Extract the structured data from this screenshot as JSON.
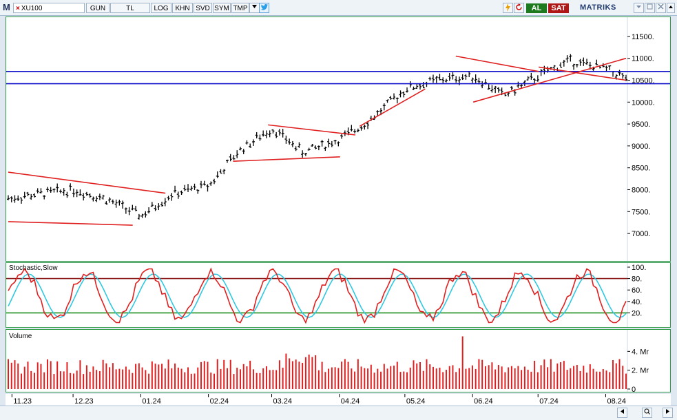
{
  "toolbar": {
    "logo": "M",
    "symbol": "XU100",
    "close_mark": "×",
    "buttons": [
      {
        "name": "gun-button",
        "label": "GUN"
      },
      {
        "name": "currency-button",
        "label": "TL"
      },
      {
        "name": "log-button",
        "label": "LOG"
      },
      {
        "name": "khn-button",
        "label": "KHN"
      },
      {
        "name": "svd-button",
        "label": "SVD"
      },
      {
        "name": "sym-button",
        "label": "SYM"
      },
      {
        "name": "tmp-button",
        "label": "TMP"
      }
    ],
    "buy_label": "AL",
    "sell_label": "SAT",
    "brand": "MATRIKS"
  },
  "colors": {
    "price": "#000000",
    "trendline": "#e02020",
    "hline": "#1010c8",
    "stoch_k": "#e02020",
    "stoch_d": "#30c8e0",
    "upper_band": "#8b1a1a",
    "lower_band": "#1f8f1f",
    "volume": "#e02020",
    "panel_border": "#2e9a46"
  },
  "chart_data": [
    {
      "type": "ohlc",
      "title": "",
      "series_name": "XU100",
      "yticks": [
        "11500.",
        "11000.",
        "10500.",
        "10000.",
        "9500.",
        "9000.",
        "8500.",
        "8000.",
        "7500.",
        "7000."
      ],
      "ytick_values": [
        11500,
        11000,
        10500,
        10000,
        9500,
        9000,
        8500,
        8000,
        7500,
        7000
      ],
      "ylim": [
        6750,
        11750
      ],
      "horizontal_lines": [
        10700,
        10420
      ],
      "close_path_monthly": [
        {
          "date": "2023-11-01",
          "close": 7800
        },
        {
          "date": "2023-11-15",
          "close": 7900
        },
        {
          "date": "2023-12-01",
          "close": 8000
        },
        {
          "date": "2023-12-15",
          "close": 7800
        },
        {
          "date": "2024-01-01",
          "close": 7400
        },
        {
          "date": "2024-01-15",
          "close": 7900
        },
        {
          "date": "2024-02-01",
          "close": 8100
        },
        {
          "date": "2024-02-15",
          "close": 8900
        },
        {
          "date": "2024-03-01",
          "close": 9400
        },
        {
          "date": "2024-03-15",
          "close": 8850
        },
        {
          "date": "2024-04-01",
          "close": 9150
        },
        {
          "date": "2024-04-15",
          "close": 9600
        },
        {
          "date": "2024-05-01",
          "close": 10300
        },
        {
          "date": "2024-05-15",
          "close": 10500
        },
        {
          "date": "2024-06-01",
          "close": 10600
        },
        {
          "date": "2024-06-15",
          "close": 10150
        },
        {
          "date": "2024-07-01",
          "close": 10600
        },
        {
          "date": "2024-07-15",
          "close": 10950
        },
        {
          "date": "2024-08-01",
          "close": 10750
        },
        {
          "date": "2024-08-10",
          "close": 10550
        }
      ]
    },
    {
      "type": "line",
      "title": "Stochastic,Slow",
      "yticks": [
        "100.",
        "80.",
        "60.",
        "40.",
        "20."
      ],
      "ytick_values": [
        100,
        80,
        60,
        40,
        20
      ],
      "ylim": [
        0,
        100
      ],
      "upper_band": 80,
      "lower_band": 20
    },
    {
      "type": "bar",
      "title": "Volume",
      "yticks": [
        "4. Mr",
        "2. Mr",
        "0"
      ],
      "ytick_values": [
        4,
        2,
        0
      ],
      "ylim": [
        0,
        6
      ]
    }
  ],
  "xaxis": {
    "labels": [
      "11.23",
      "12.23",
      "01.24",
      "02.24",
      "03.24",
      "04.24",
      "05.24",
      "06.24",
      "07.24",
      "08.24"
    ]
  }
}
